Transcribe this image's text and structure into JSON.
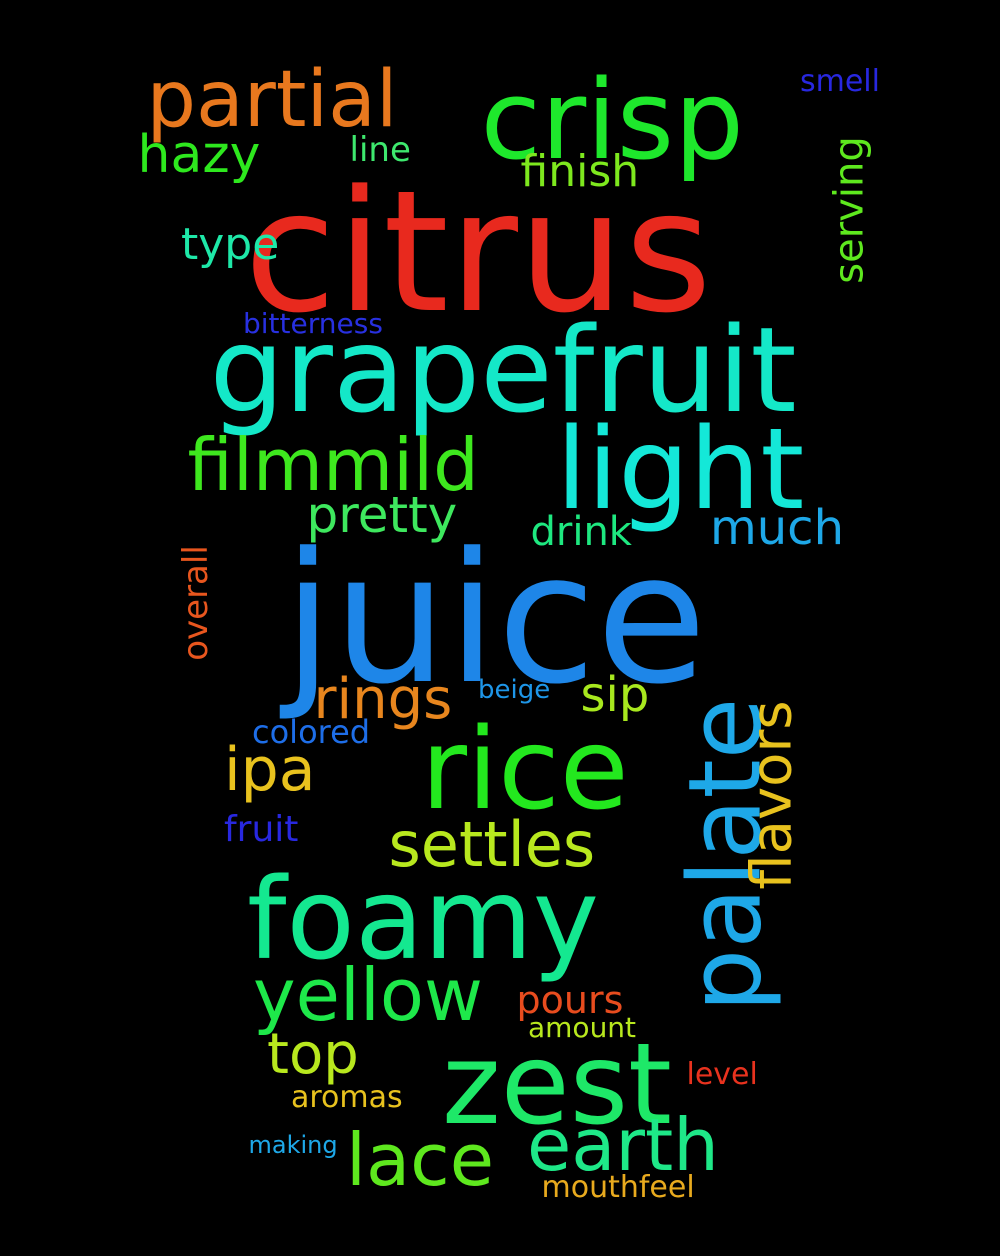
{
  "words": [
    {
      "text": "citrus",
      "color": "#e8291e"
    },
    {
      "text": "juice",
      "color": "#1e86e8"
    },
    {
      "text": "grapefruit",
      "color": "#14e8c8"
    },
    {
      "text": "crisp",
      "color": "#1ee82c"
    },
    {
      "text": "light",
      "color": "#14e8d8"
    },
    {
      "text": "rice",
      "color": "#23e81e"
    },
    {
      "text": "foamy",
      "color": "#14e890"
    },
    {
      "text": "zest",
      "color": "#1ee868"
    },
    {
      "text": "palate",
      "color": "#1ea8e8"
    },
    {
      "text": "partial",
      "color": "#e8781e"
    },
    {
      "text": "filmmild",
      "color": "#3ee81e"
    },
    {
      "text": "yellow",
      "color": "#1ee84a"
    },
    {
      "text": "earth",
      "color": "#1ee888"
    },
    {
      "text": "lace",
      "color": "#5ee81e"
    },
    {
      "text": "settles",
      "color": "#b8e81e"
    },
    {
      "text": "flavors",
      "color": "#e8c21e"
    },
    {
      "text": "rings",
      "color": "#e8861e"
    },
    {
      "text": "ipa",
      "color": "#e8c21e"
    },
    {
      "text": "top",
      "color": "#b8e81e"
    },
    {
      "text": "pretty",
      "color": "#3ee85e"
    },
    {
      "text": "hazy",
      "color": "#2ee81e"
    },
    {
      "text": "much",
      "color": "#1ea8e8"
    },
    {
      "text": "sip",
      "color": "#a8e81e"
    },
    {
      "text": "serving",
      "color": "#5ee81e"
    },
    {
      "text": "finish",
      "color": "#7ee81e"
    },
    {
      "text": "type",
      "color": "#1ee8a8"
    },
    {
      "text": "drink",
      "color": "#1ee880"
    },
    {
      "text": "pours",
      "color": "#e84c1e"
    },
    {
      "text": "overall",
      "color": "#e8561e"
    },
    {
      "text": "line",
      "color": "#3ee86e"
    },
    {
      "text": "smell",
      "color": "#2828e0"
    },
    {
      "text": "fruit",
      "color": "#2828e0"
    },
    {
      "text": "colored",
      "color": "#1e6ee8"
    },
    {
      "text": "bitterness",
      "color": "#2830e0"
    },
    {
      "text": "beige",
      "color": "#1e96e8"
    },
    {
      "text": "aromas",
      "color": "#e8c21e"
    },
    {
      "text": "amount",
      "color": "#b8e81e"
    },
    {
      "text": "level",
      "color": "#e8321e"
    },
    {
      "text": "mouthfeel",
      "color": "#e8aa1e"
    },
    {
      "text": "making",
      "color": "#1ea8e8"
    }
  ]
}
